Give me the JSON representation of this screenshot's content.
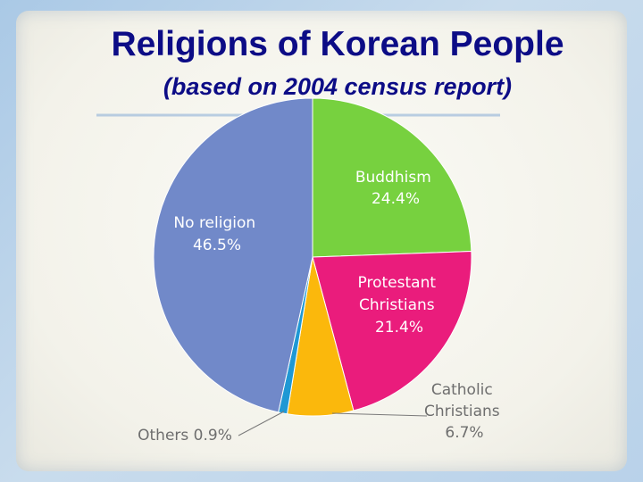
{
  "chart_data": {
    "type": "pie",
    "title": "Religions  of Korean People",
    "subtitle": "(based on 2004 census report)",
    "start_angle_deg": 0,
    "direction": "clockwise",
    "slices": [
      {
        "label": "Buddhism",
        "value": 24.4,
        "value_text": "24.4%",
        "color": "#77d13f"
      },
      {
        "label": "Protestant Christians",
        "value": 21.4,
        "value_text": "21.4%",
        "color": "#ea1c7c"
      },
      {
        "label": "Catholic Christians",
        "value": 6.7,
        "value_text": "6.7%",
        "color": "#fbb80c"
      },
      {
        "label": "Others",
        "value": 0.9,
        "value_text": "0.9%",
        "color": "#1f98d4"
      },
      {
        "label": "No religion",
        "value": 46.5,
        "value_text": "46.5%",
        "color": "#7189c9"
      }
    ]
  },
  "labels": {
    "buddhism": [
      "Buddhism",
      "24.4%"
    ],
    "protestant": [
      "Protestant",
      "Christians",
      "21.4%"
    ],
    "catholic": [
      "Catholic",
      "Christians",
      "6.7%"
    ],
    "others": "Others 0.9%",
    "no_religion": [
      "No religion",
      "46.5%"
    ]
  },
  "colors": {
    "title": "#0c0c86",
    "slice_label": "#ffffff",
    "outer_label": "#6e6e6e"
  }
}
